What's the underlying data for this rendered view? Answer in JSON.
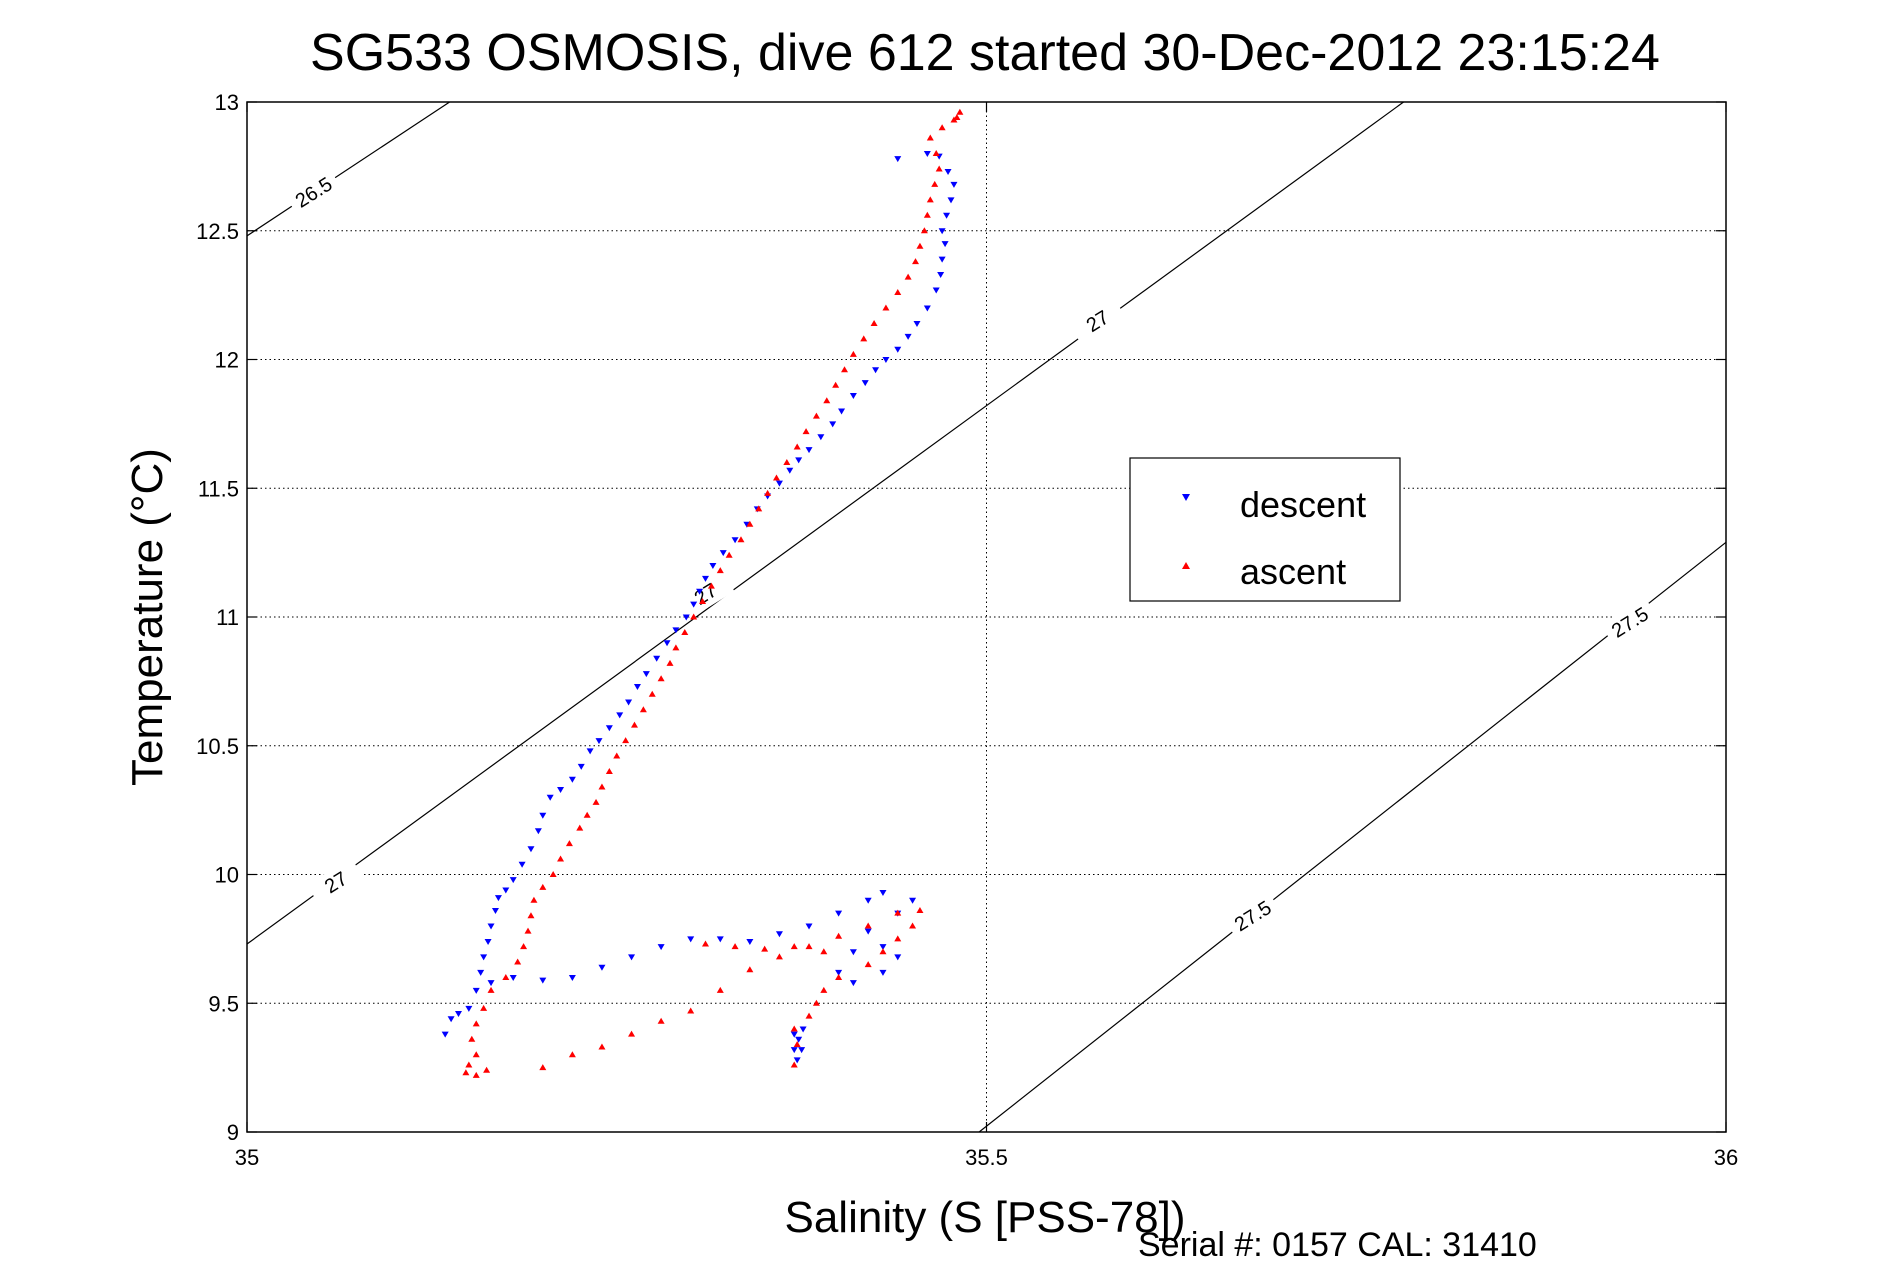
{
  "chart_data": {
    "type": "scatter",
    "title": "SG533 OSMOSIS, dive 612 started 30-Dec-2012 23:15:24",
    "xlabel": "Salinity (S [PSS-78])",
    "ylabel": "Temperature (°C)",
    "footer": "Serial #: 0157  CAL: 31410",
    "xlim": [
      35,
      36
    ],
    "ylim": [
      9,
      13
    ],
    "x_ticks": [
      35,
      35.5,
      36
    ],
    "x_tick_labels": [
      "35",
      "35.5",
      "36"
    ],
    "y_ticks": [
      9,
      9.5,
      10,
      10.5,
      11,
      11.5,
      12,
      12.5,
      13
    ],
    "y_tick_labels": [
      "9",
      "9.5",
      "10",
      "10.5",
      "11",
      "11.5",
      "12",
      "12.5",
      "13"
    ],
    "grid": true,
    "legend_placement": "right-center",
    "density_contours": [
      {
        "label": "26.5",
        "points": [
          [
            35.0,
            12.48
          ],
          [
            35.137,
            13.0
          ]
        ]
      },
      {
        "label": "27",
        "points": [
          [
            35.0,
            9.73
          ],
          [
            35.782,
            13.0
          ]
        ]
      },
      {
        "label": "27.5",
        "points": [
          [
            35.495,
            9.0
          ],
          [
            36.0,
            11.29
          ]
        ]
      }
    ],
    "contour_labels": [
      {
        "text": "26.5",
        "x": 35.045,
        "y": 12.65
      },
      {
        "text": "27",
        "x": 35.06,
        "y": 9.97
      },
      {
        "text": "27",
        "x": 35.31,
        "y": 11.09
      },
      {
        "text": "27",
        "x": 35.575,
        "y": 12.15
      },
      {
        "text": "27.5",
        "x": 35.68,
        "y": 9.84
      },
      {
        "text": "27.5",
        "x": 35.935,
        "y": 10.98
      }
    ],
    "series": [
      {
        "name": "descent",
        "color": "#0000ff",
        "marker": "triangle-down",
        "points": [
          [
            35.134,
            9.38
          ],
          [
            35.138,
            9.44
          ],
          [
            35.143,
            9.46
          ],
          [
            35.15,
            9.48
          ],
          [
            35.155,
            9.55
          ],
          [
            35.158,
            9.62
          ],
          [
            35.16,
            9.68
          ],
          [
            35.163,
            9.74
          ],
          [
            35.165,
            9.8
          ],
          [
            35.168,
            9.86
          ],
          [
            35.17,
            9.91
          ],
          [
            35.175,
            9.94
          ],
          [
            35.18,
            9.98
          ],
          [
            35.186,
            10.04
          ],
          [
            35.192,
            10.1
          ],
          [
            35.197,
            10.17
          ],
          [
            35.2,
            10.23
          ],
          [
            35.205,
            10.3
          ],
          [
            35.212,
            10.33
          ],
          [
            35.22,
            10.37
          ],
          [
            35.226,
            10.42
          ],
          [
            35.232,
            10.48
          ],
          [
            35.238,
            10.52
          ],
          [
            35.245,
            10.57
          ],
          [
            35.252,
            10.62
          ],
          [
            35.258,
            10.67
          ],
          [
            35.264,
            10.73
          ],
          [
            35.27,
            10.78
          ],
          [
            35.277,
            10.84
          ],
          [
            35.284,
            10.9
          ],
          [
            35.29,
            10.95
          ],
          [
            35.297,
            11.0
          ],
          [
            35.302,
            11.05
          ],
          [
            35.306,
            11.1
          ],
          [
            35.31,
            11.15
          ],
          [
            35.315,
            11.2
          ],
          [
            35.322,
            11.25
          ],
          [
            35.33,
            11.3
          ],
          [
            35.338,
            11.36
          ],
          [
            35.345,
            11.42
          ],
          [
            35.352,
            11.47
          ],
          [
            35.36,
            11.52
          ],
          [
            35.367,
            11.57
          ],
          [
            35.373,
            11.61
          ],
          [
            35.38,
            11.65
          ],
          [
            35.388,
            11.7
          ],
          [
            35.396,
            11.75
          ],
          [
            35.402,
            11.8
          ],
          [
            35.41,
            11.86
          ],
          [
            35.418,
            11.91
          ],
          [
            35.425,
            11.96
          ],
          [
            35.432,
            12.0
          ],
          [
            35.44,
            12.04
          ],
          [
            35.447,
            12.09
          ],
          [
            35.453,
            12.14
          ],
          [
            35.46,
            12.2
          ],
          [
            35.466,
            12.27
          ],
          [
            35.469,
            12.33
          ],
          [
            35.47,
            12.39
          ],
          [
            35.472,
            12.45
          ],
          [
            35.47,
            12.5
          ],
          [
            35.473,
            12.56
          ],
          [
            35.476,
            12.62
          ],
          [
            35.478,
            12.68
          ],
          [
            35.474,
            12.73
          ],
          [
            35.468,
            12.79
          ],
          [
            35.46,
            12.8
          ],
          [
            35.44,
            12.78
          ],
          [
            35.165,
            9.58
          ],
          [
            35.18,
            9.6
          ],
          [
            35.2,
            9.59
          ],
          [
            35.22,
            9.6
          ],
          [
            35.24,
            9.64
          ],
          [
            35.26,
            9.68
          ],
          [
            35.28,
            9.72
          ],
          [
            35.3,
            9.75
          ],
          [
            35.32,
            9.75
          ],
          [
            35.34,
            9.74
          ],
          [
            35.36,
            9.77
          ],
          [
            35.38,
            9.8
          ],
          [
            35.4,
            9.85
          ],
          [
            35.42,
            9.9
          ],
          [
            35.43,
            9.93
          ],
          [
            35.45,
            9.9
          ],
          [
            35.44,
            9.85
          ],
          [
            35.42,
            9.78
          ],
          [
            35.41,
            9.7
          ],
          [
            35.4,
            9.62
          ],
          [
            35.41,
            9.58
          ],
          [
            35.43,
            9.62
          ],
          [
            35.44,
            9.68
          ],
          [
            35.43,
            9.72
          ],
          [
            35.37,
            9.38
          ],
          [
            35.37,
            9.32
          ],
          [
            35.372,
            9.28
          ],
          [
            35.375,
            9.32
          ],
          [
            35.373,
            9.36
          ],
          [
            35.376,
            9.4
          ]
        ]
      },
      {
        "name": "ascent",
        "color": "#ff0000",
        "marker": "triangle-up",
        "points": [
          [
            35.148,
            9.23
          ],
          [
            35.15,
            9.26
          ],
          [
            35.155,
            9.22
          ],
          [
            35.162,
            9.24
          ],
          [
            35.155,
            9.3
          ],
          [
            35.152,
            9.36
          ],
          [
            35.155,
            9.42
          ],
          [
            35.16,
            9.48
          ],
          [
            35.165,
            9.55
          ],
          [
            35.175,
            9.6
          ],
          [
            35.183,
            9.66
          ],
          [
            35.187,
            9.72
          ],
          [
            35.19,
            9.78
          ],
          [
            35.192,
            9.84
          ],
          [
            35.194,
            9.9
          ],
          [
            35.2,
            9.95
          ],
          [
            35.207,
            10.0
          ],
          [
            35.212,
            10.06
          ],
          [
            35.218,
            10.12
          ],
          [
            35.225,
            10.18
          ],
          [
            35.23,
            10.23
          ],
          [
            35.236,
            10.28
          ],
          [
            35.24,
            10.34
          ],
          [
            35.245,
            10.4
          ],
          [
            35.25,
            10.46
          ],
          [
            35.256,
            10.52
          ],
          [
            35.262,
            10.58
          ],
          [
            35.268,
            10.64
          ],
          [
            35.274,
            10.7
          ],
          [
            35.28,
            10.76
          ],
          [
            35.286,
            10.82
          ],
          [
            35.29,
            10.88
          ],
          [
            35.296,
            10.94
          ],
          [
            35.302,
            11.0
          ],
          [
            35.308,
            11.06
          ],
          [
            35.314,
            11.12
          ],
          [
            35.32,
            11.18
          ],
          [
            35.326,
            11.24
          ],
          [
            35.334,
            11.3
          ],
          [
            35.34,
            11.36
          ],
          [
            35.346,
            11.42
          ],
          [
            35.352,
            11.48
          ],
          [
            35.358,
            11.54
          ],
          [
            35.365,
            11.6
          ],
          [
            35.372,
            11.66
          ],
          [
            35.378,
            11.72
          ],
          [
            35.385,
            11.78
          ],
          [
            35.392,
            11.84
          ],
          [
            35.398,
            11.9
          ],
          [
            35.404,
            11.96
          ],
          [
            35.41,
            12.02
          ],
          [
            35.417,
            12.08
          ],
          [
            35.424,
            12.14
          ],
          [
            35.432,
            12.2
          ],
          [
            35.44,
            12.26
          ],
          [
            35.447,
            12.32
          ],
          [
            35.452,
            12.38
          ],
          [
            35.455,
            12.44
          ],
          [
            35.458,
            12.5
          ],
          [
            35.46,
            12.56
          ],
          [
            35.462,
            12.62
          ],
          [
            35.465,
            12.68
          ],
          [
            35.468,
            12.74
          ],
          [
            35.466,
            12.8
          ],
          [
            35.462,
            12.86
          ],
          [
            35.47,
            12.9
          ],
          [
            35.48,
            12.94
          ],
          [
            35.482,
            12.96
          ],
          [
            35.478,
            12.93
          ],
          [
            35.2,
            9.25
          ],
          [
            35.22,
            9.3
          ],
          [
            35.24,
            9.33
          ],
          [
            35.26,
            9.38
          ],
          [
            35.28,
            9.43
          ],
          [
            35.3,
            9.47
          ],
          [
            35.32,
            9.55
          ],
          [
            35.34,
            9.63
          ],
          [
            35.36,
            9.68
          ],
          [
            35.38,
            9.72
          ],
          [
            35.4,
            9.76
          ],
          [
            35.42,
            9.8
          ],
          [
            35.44,
            9.85
          ],
          [
            35.455,
            9.86
          ],
          [
            35.45,
            9.8
          ],
          [
            35.44,
            9.75
          ],
          [
            35.43,
            9.7
          ],
          [
            35.42,
            9.65
          ],
          [
            35.4,
            9.6
          ],
          [
            35.39,
            9.55
          ],
          [
            35.385,
            9.5
          ],
          [
            35.38,
            9.45
          ],
          [
            35.37,
            9.4
          ],
          [
            35.372,
            9.34
          ],
          [
            35.37,
            9.26
          ],
          [
            35.31,
            9.73
          ],
          [
            35.33,
            9.72
          ],
          [
            35.35,
            9.71
          ],
          [
            35.37,
            9.72
          ],
          [
            35.39,
            9.7
          ]
        ]
      }
    ]
  }
}
